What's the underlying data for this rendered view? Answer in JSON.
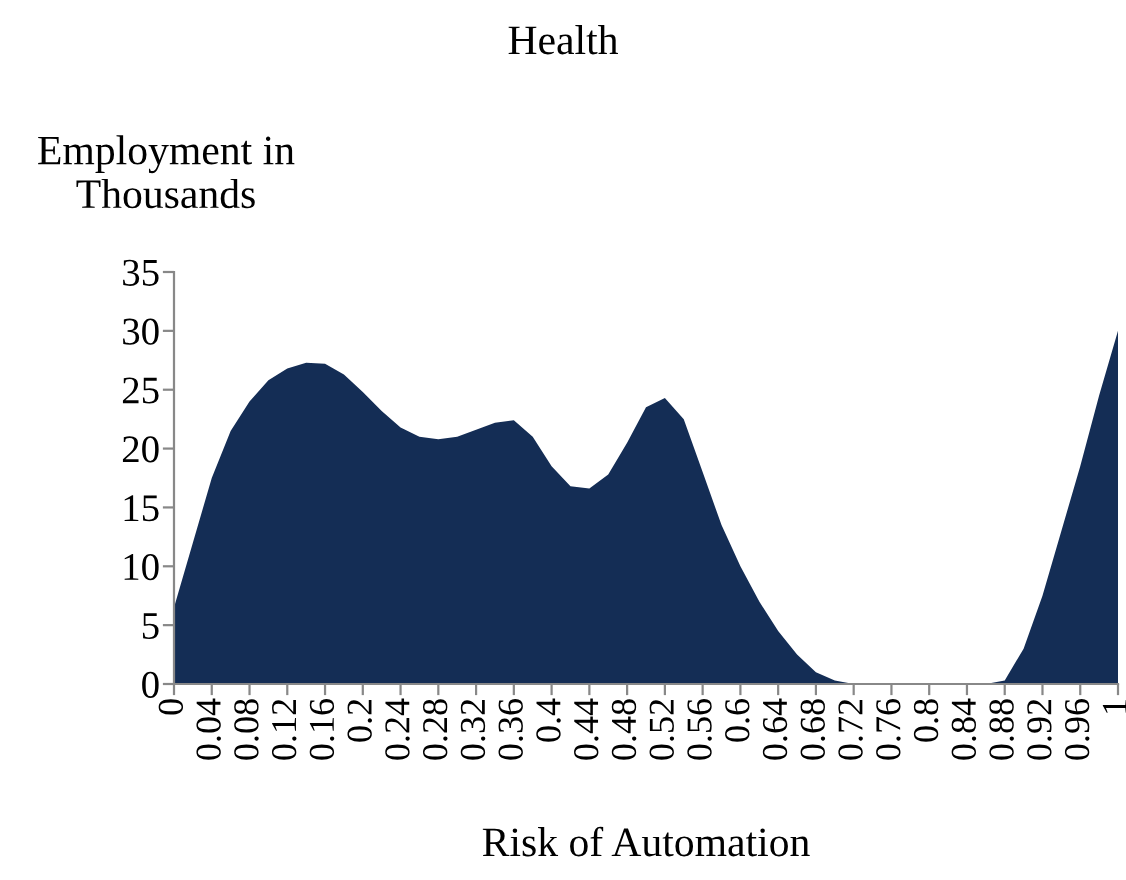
{
  "chart_data": {
    "type": "area",
    "title": "Health",
    "xlabel": "Risk of Automation",
    "ylabel": "Employment in\nThousands",
    "x": [
      0,
      0.02,
      0.04,
      0.06,
      0.08,
      0.1,
      0.12,
      0.14,
      0.16,
      0.18,
      0.2,
      0.22,
      0.24,
      0.26,
      0.28,
      0.3,
      0.32,
      0.34,
      0.36,
      0.38,
      0.4,
      0.42,
      0.44,
      0.46,
      0.48,
      0.5,
      0.52,
      0.54,
      0.56,
      0.58,
      0.6,
      0.62,
      0.64,
      0.66,
      0.68,
      0.7,
      0.72,
      0.74,
      0.76,
      0.78,
      0.8,
      0.82,
      0.84,
      0.86,
      0.88,
      0.9,
      0.92,
      0.94,
      0.96,
      0.98,
      1
    ],
    "series": [
      {
        "color": "#142d55",
        "values": [
          6.5,
          12,
          17.5,
          21.5,
          24,
          25.8,
          26.8,
          27.3,
          27.2,
          26.3,
          24.8,
          23.2,
          21.8,
          21,
          20.8,
          21,
          21.6,
          22.2,
          22.4,
          21,
          18.5,
          16.8,
          16.6,
          17.8,
          20.5,
          23.5,
          24.3,
          22.5,
          18,
          13.5,
          10,
          7,
          4.5,
          2.5,
          1,
          0.3,
          0,
          0,
          0,
          0,
          0,
          0,
          0,
          0,
          0.3,
          3,
          7.5,
          13,
          18.5,
          24.5,
          30
        ]
      }
    ],
    "xlim": [
      0,
      1
    ],
    "ylim": [
      0,
      35
    ],
    "xticks": [
      0,
      0.04,
      0.08,
      0.12,
      0.16,
      0.2,
      0.24,
      0.28,
      0.32,
      0.36,
      0.4,
      0.44,
      0.48,
      0.52,
      0.56,
      0.6,
      0.64,
      0.68,
      0.72,
      0.76,
      0.8,
      0.84,
      0.88,
      0.92,
      0.96,
      1
    ],
    "yticks": [
      0,
      5,
      10,
      15,
      20,
      25,
      30,
      35
    ],
    "grid": false
  }
}
